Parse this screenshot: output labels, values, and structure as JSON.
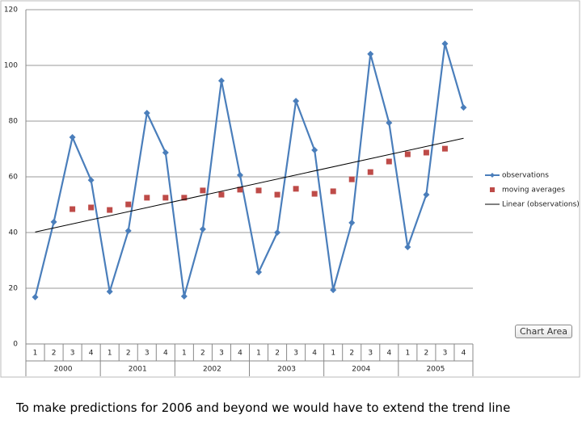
{
  "chart_data": {
    "type": "line",
    "categories": [
      "1",
      "2",
      "3",
      "4",
      "1",
      "2",
      "3",
      "4",
      "1",
      "2",
      "3",
      "4",
      "1",
      "2",
      "3",
      "4",
      "1",
      "2",
      "3",
      "4",
      "1",
      "2",
      "3",
      "4"
    ],
    "groups": [
      "2000",
      "2001",
      "2002",
      "2003",
      "2004",
      "2005"
    ],
    "series": [
      {
        "name": "observations",
        "color": "#4a7ebb",
        "marker": "diamond",
        "line": true,
        "values": [
          16.8,
          43.8,
          74.2,
          58.8,
          18.8,
          40.6,
          82.9,
          68.7,
          17.1,
          41.2,
          94.5,
          60.6,
          25.8,
          40.0,
          87.2,
          69.6,
          19.4,
          43.5,
          104.1,
          79.4,
          34.8,
          53.6,
          107.8,
          84.9
        ]
      },
      {
        "name": "moving averages",
        "color": "#be4b48",
        "marker": "square",
        "line": false,
        "values": [
          null,
          null,
          48.4,
          49.0,
          48.1,
          50.1,
          52.5,
          52.5,
          52.5,
          55.1,
          53.6,
          55.4,
          55.1,
          53.6,
          55.7,
          53.9,
          54.8,
          59.1,
          61.7,
          65.5,
          68.1,
          68.7,
          70.1,
          null
        ]
      }
    ],
    "trendline": {
      "series": 0,
      "name": "Linear (observations)",
      "color": "#000000"
    },
    "ylim": [
      0,
      120
    ],
    "yticks": [
      0,
      20,
      40,
      60,
      80,
      100,
      120
    ],
    "grid": true,
    "legend": "right"
  },
  "tooltip": "Chart Area",
  "caption": "To make predictions for 2006 and beyond we would have to extend the trend line"
}
